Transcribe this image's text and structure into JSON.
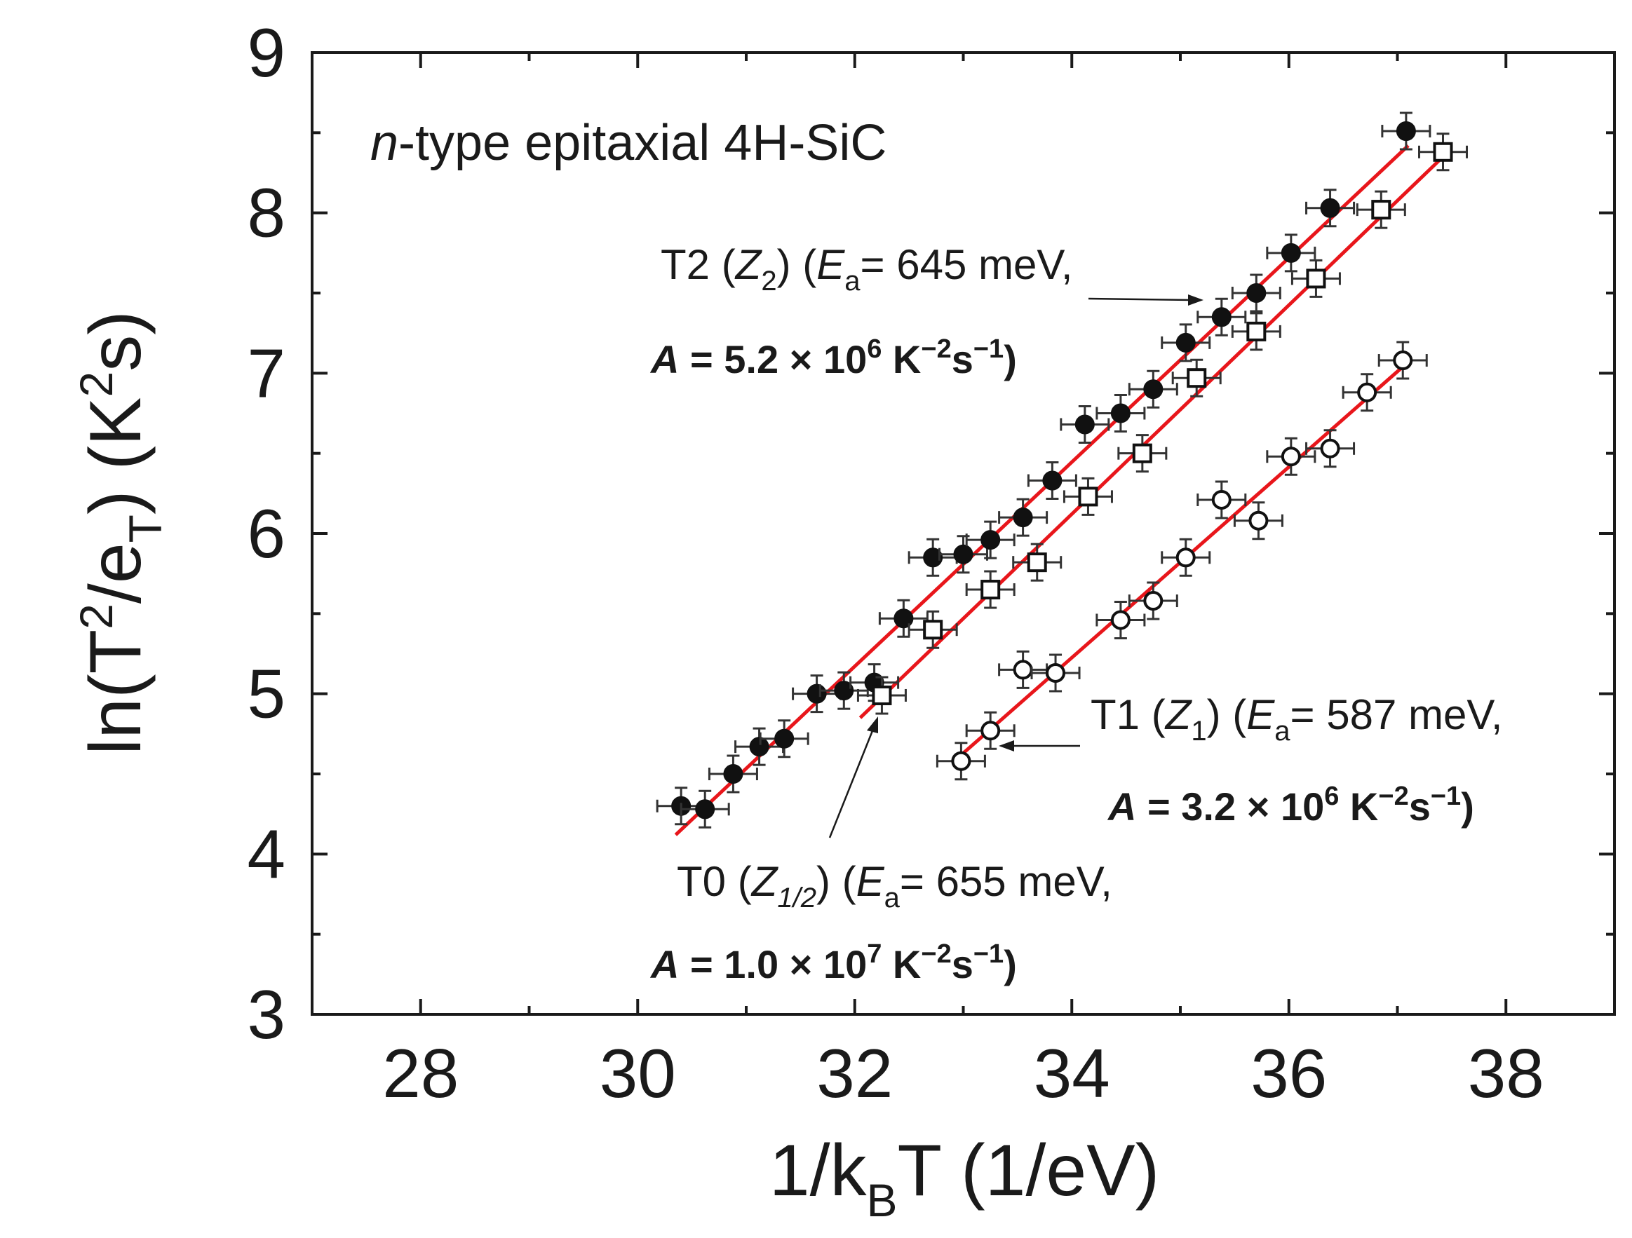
{
  "chart_data": {
    "type": "scatter",
    "title": "n-type epitaxial 4H-SiC",
    "title_italic_prefix": "n",
    "title_rest": "-type epitaxial 4H-SiC",
    "xlabel": "1/k_BT (1/eV)",
    "ylabel": "ln(T^2/e_T) (K^2s)",
    "xlim": [
      27,
      39
    ],
    "ylim": [
      3,
      9
    ],
    "xticks": [
      28,
      30,
      32,
      34,
      36,
      38
    ],
    "yticks": [
      3,
      4,
      5,
      6,
      7,
      8,
      9
    ],
    "grid": false,
    "fit_line_color": "#e8161b",
    "series": [
      {
        "name": "T2",
        "marker": "filled-circle",
        "label": "T2 (Z2) (Ea= 645 meV, A = 5.2 × 10^6 K^-2s^-1)",
        "label_line1": {
          "name": "T2 (",
          "trap": "Z",
          "trap_sub": "2",
          "mid": ") (",
          "ea": "E",
          "ea_sub": "a",
          "value": "= 645 meV,"
        },
        "label_line2": {
          "a": "A",
          "eq": " = 5.2 × 10",
          "exp": "6",
          "unit": " K",
          "unit_exp": "−2",
          "unit2": "s",
          "unit2_exp": "−1",
          "close": ")"
        },
        "fit": {
          "x": [
            30.35,
            37.1
          ],
          "y": [
            4.12,
            8.42
          ]
        },
        "x": [
          30.4,
          30.62,
          30.88,
          31.12,
          31.35,
          31.65,
          31.9,
          32.18,
          32.45,
          32.72,
          33.0,
          33.25,
          33.55,
          33.82,
          34.12,
          34.45,
          34.75,
          35.05,
          35.38,
          35.7,
          36.02,
          36.38,
          37.08
        ],
        "y": [
          4.3,
          4.28,
          4.5,
          4.67,
          4.72,
          5.0,
          5.02,
          5.07,
          5.47,
          5.85,
          5.87,
          5.96,
          6.1,
          6.33,
          6.68,
          6.75,
          6.9,
          7.19,
          7.35,
          7.5,
          7.75,
          8.03,
          8.51
        ]
      },
      {
        "name": "T0",
        "marker": "open-square",
        "label": "T0 (Z1/2) (Ea= 655 meV, A = 1.0 × 10^7 K^-2s^-1)",
        "label_line1": {
          "name": "T0 (",
          "trap": "Z",
          "trap_sub": "1/2",
          "mid": ") (",
          "ea": "E",
          "ea_sub": "a",
          "value": "= 655 meV,"
        },
        "label_line2": {
          "a": "A",
          "eq": " = 1.0 × 10",
          "exp": "7",
          "unit": " K",
          "unit_exp": "−2",
          "unit2": "s",
          "unit2_exp": "−1",
          "close": ")"
        },
        "fit": {
          "x": [
            32.05,
            37.42
          ],
          "y": [
            4.85,
            8.35
          ]
        },
        "x": [
          32.25,
          32.72,
          33.25,
          33.68,
          34.15,
          34.65,
          35.15,
          35.7,
          36.25,
          36.85,
          37.42
        ],
        "y": [
          4.99,
          5.4,
          5.65,
          5.82,
          6.23,
          6.5,
          6.97,
          7.26,
          7.59,
          8.02,
          8.38
        ]
      },
      {
        "name": "T1",
        "marker": "open-circle",
        "label": "T1 (Z1) (Ea= 587 meV, A = 3.2 × 10^6 K^-2s^-1)",
        "label_line1": {
          "name": "T1 (",
          "trap": "Z",
          "trap_sub": "1",
          "mid": ") (",
          "ea": "E",
          "ea_sub": "a",
          "value": "= 587 meV,"
        },
        "label_line2": {
          "a": "A",
          "eq": " = 3.2 × 10",
          "exp": "6",
          "unit": " K",
          "unit_exp": "−2",
          "unit2": "s",
          "unit2_exp": "−1",
          "close": ")"
        },
        "fit": {
          "x": [
            32.95,
            37.05
          ],
          "y": [
            4.6,
            7.04
          ]
        },
        "x": [
          32.98,
          33.25,
          33.55,
          33.85,
          34.45,
          34.75,
          35.05,
          35.38,
          35.72,
          36.02,
          36.38,
          36.72,
          37.05
        ],
        "y": [
          4.58,
          4.77,
          5.15,
          5.13,
          5.46,
          5.58,
          5.85,
          6.21,
          6.08,
          6.48,
          6.53,
          6.88,
          7.08
        ]
      }
    ]
  }
}
